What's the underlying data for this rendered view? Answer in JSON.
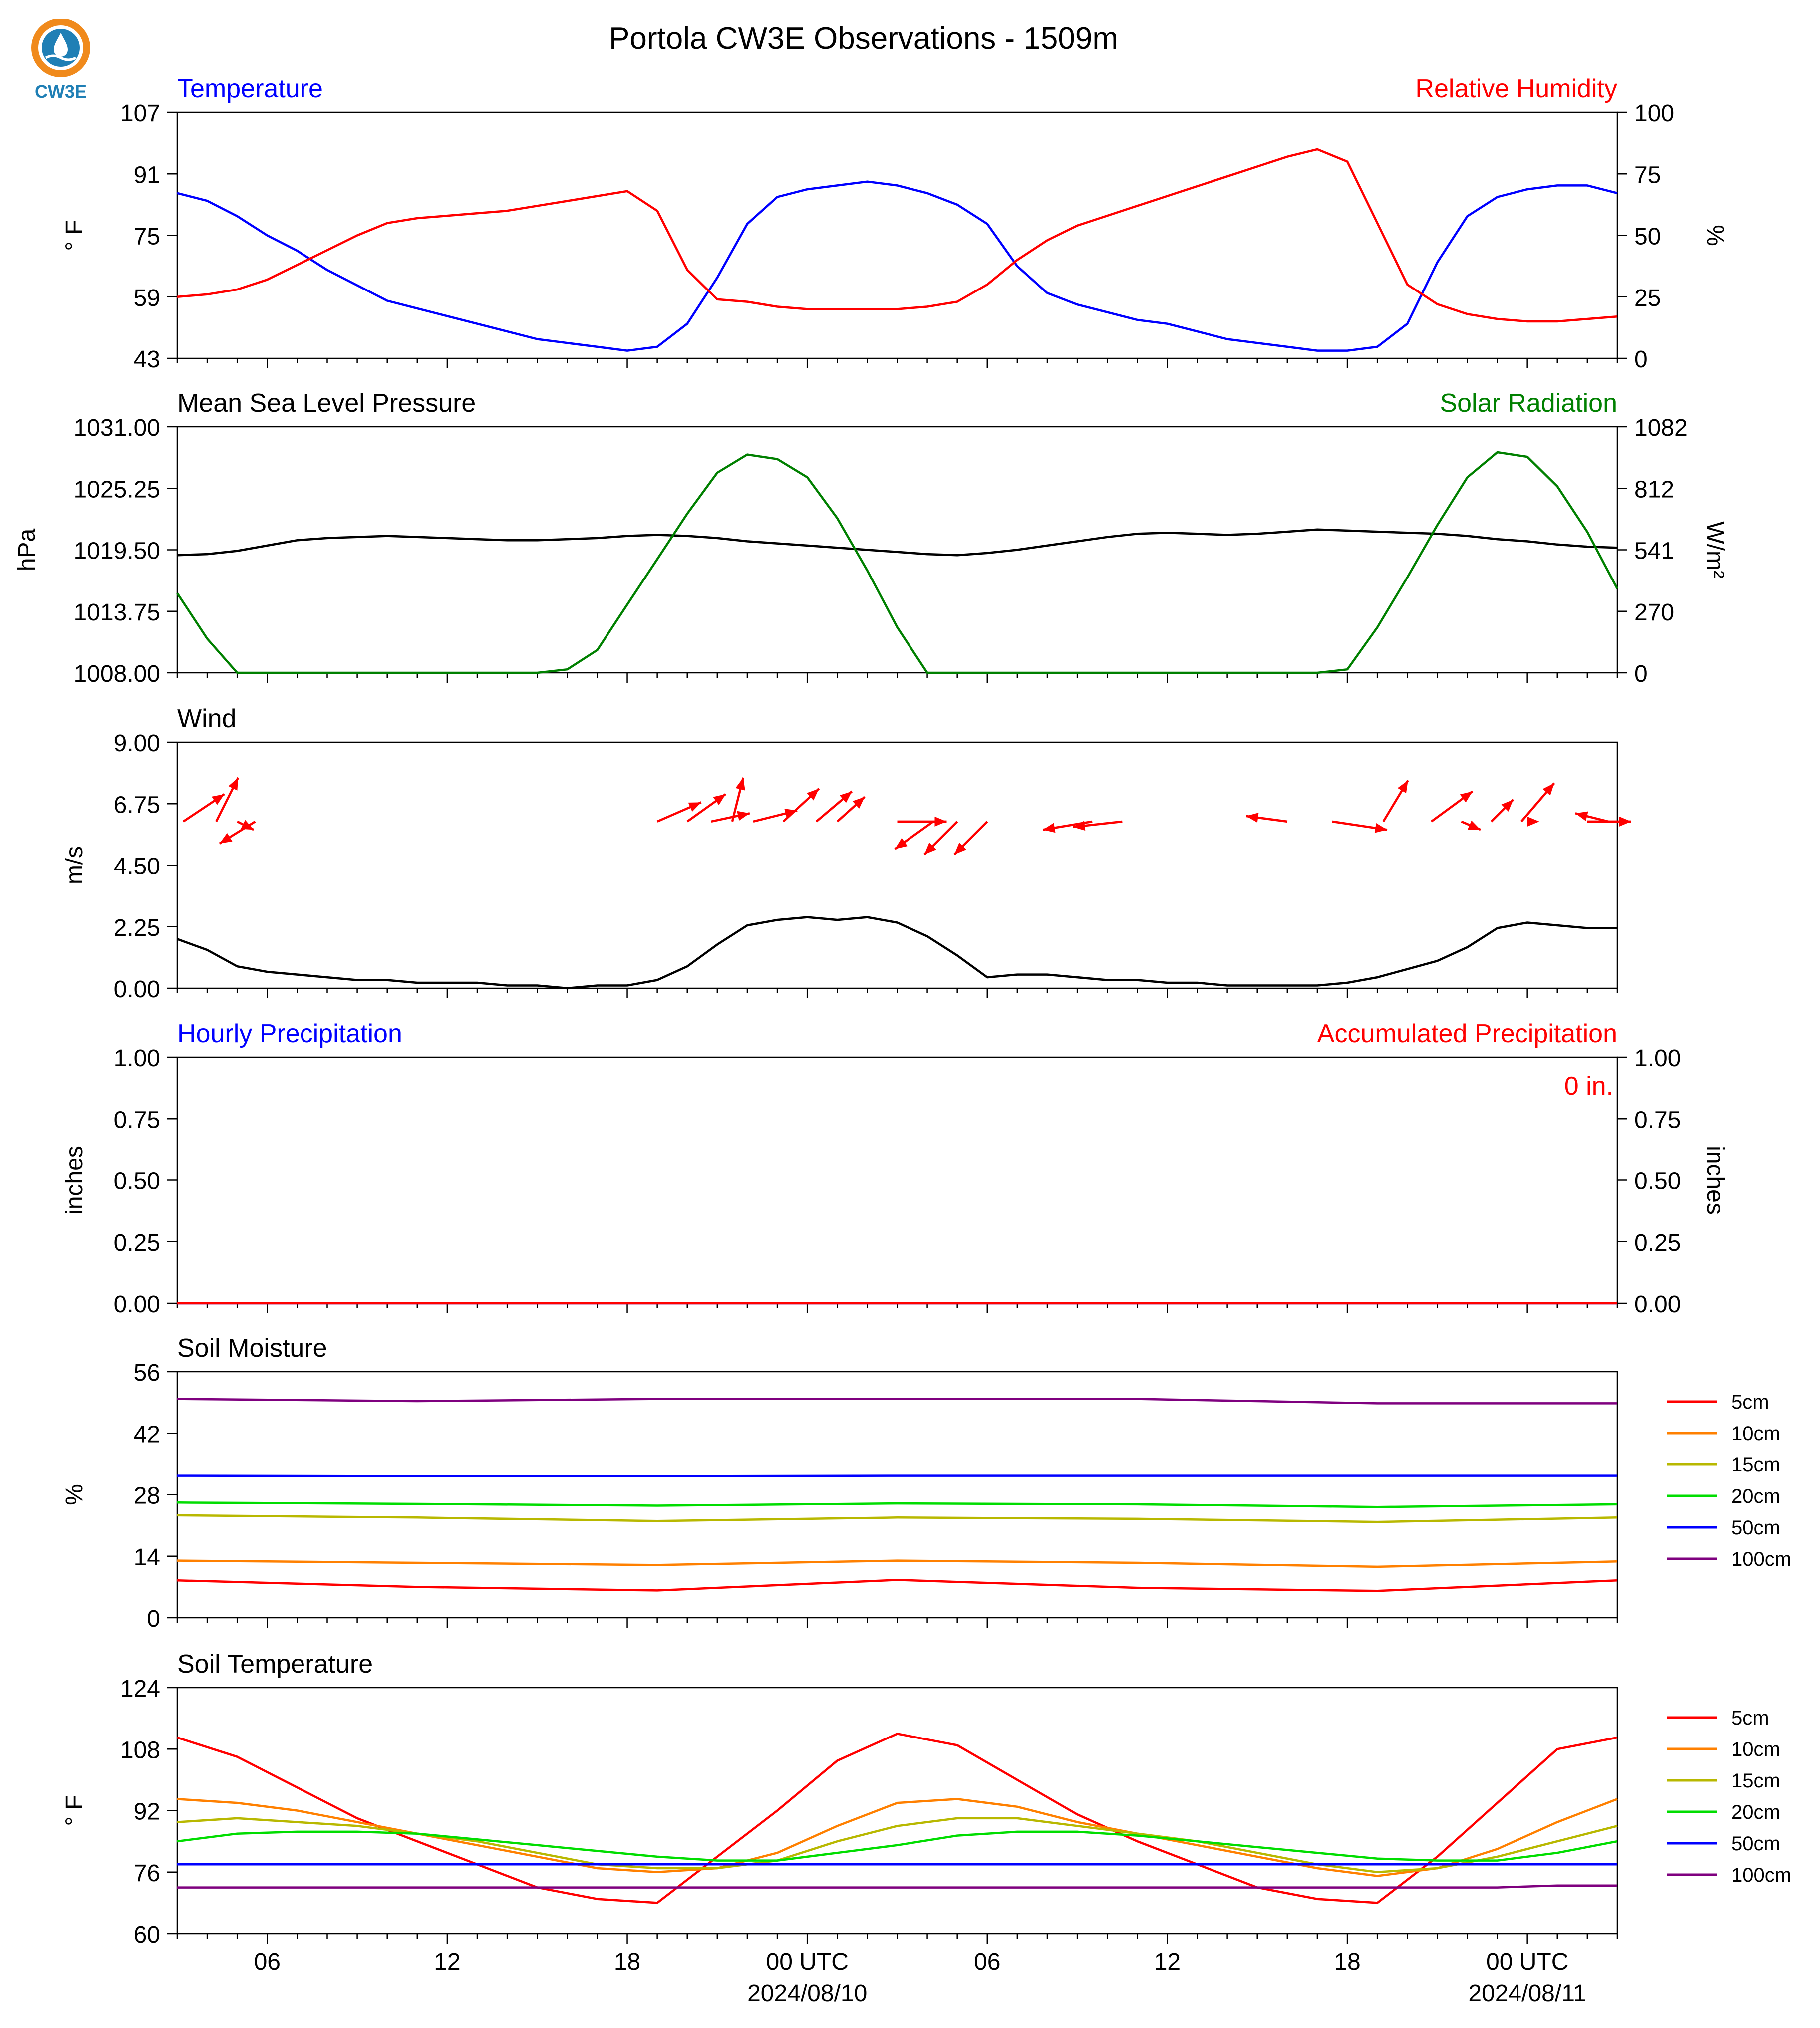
{
  "page": {
    "title": "Portola CW3E Observations - 1509m",
    "logo_text": "CW3E"
  },
  "colors": {
    "blue": "#0000ff",
    "red": "#ff0000",
    "green": "#008000",
    "black": "#000000",
    "orange": "#ff8000",
    "olive": "#b8b800",
    "lime": "#00dd00",
    "purple": "#7f007f"
  },
  "x_axis": {
    "tick_labels": [
      "06",
      "12",
      "18",
      "00 UTC",
      "06",
      "12",
      "18",
      "00 UTC"
    ],
    "date_labels": [
      "2024/08/10",
      "2024/08/11"
    ]
  },
  "legend": {
    "labels": [
      "5cm",
      "10cm",
      "15cm",
      "20cm",
      "50cm",
      "100cm"
    ]
  },
  "chart_data": [
    {
      "type": "line",
      "title_left": "Temperature",
      "title_right": "Relative Humidity",
      "ylabel_left": "° F",
      "ylabel_right": "%",
      "ylim_left": [
        43,
        107
      ],
      "ylim_right": [
        0,
        100
      ],
      "yticks_left": [
        "43",
        "59",
        "75",
        "91",
        "107"
      ],
      "yticks_right": [
        "0",
        "25",
        "50",
        "75",
        "100"
      ],
      "x_hours_from_start": [
        0,
        1,
        2,
        3,
        4,
        5,
        6,
        7,
        8,
        9,
        10,
        11,
        12,
        13,
        14,
        15,
        16,
        17,
        18,
        19,
        20,
        21,
        22,
        23,
        24,
        25,
        26,
        27,
        28,
        29,
        30,
        31,
        32,
        33,
        34,
        35,
        36,
        37,
        38,
        39,
        40,
        41,
        42,
        43,
        44,
        45,
        46,
        47,
        48
      ],
      "series": [
        {
          "axis": "left",
          "color": "blue",
          "values": [
            86,
            84,
            80,
            75,
            71,
            66,
            62,
            58,
            56,
            54,
            52,
            50,
            48,
            47,
            46,
            45,
            46,
            52,
            64,
            78,
            85,
            87,
            88,
            89,
            88,
            86,
            83,
            78,
            67,
            60,
            57,
            55,
            53,
            52,
            50,
            48,
            47,
            46,
            45,
            45,
            46,
            52,
            68,
            80,
            85,
            87,
            88,
            88,
            86
          ]
        },
        {
          "axis": "right",
          "color": "red",
          "values": [
            25,
            26,
            28,
            32,
            38,
            44,
            50,
            55,
            57,
            58,
            59,
            60,
            62,
            64,
            66,
            68,
            60,
            36,
            24,
            23,
            21,
            20,
            20,
            20,
            20,
            21,
            23,
            30,
            40,
            48,
            54,
            58,
            62,
            66,
            70,
            74,
            78,
            82,
            85,
            80,
            55,
            30,
            22,
            18,
            16,
            15,
            15,
            16,
            17
          ]
        }
      ]
    },
    {
      "type": "line",
      "title_left": "Mean Sea Level Pressure",
      "title_right": "Solar Radiation",
      "ylabel_left": "hPa",
      "ylabel_right": "W/m²",
      "ylim_left": [
        1008.0,
        1031.0
      ],
      "ylim_right": [
        0,
        1082
      ],
      "yticks_left": [
        "1008.00",
        "1013.75",
        "1019.50",
        "1025.25",
        "1031.00"
      ],
      "yticks_right": [
        "0",
        "270",
        "541",
        "812",
        "1082"
      ],
      "x_hours_from_start": [
        0,
        1,
        2,
        3,
        4,
        5,
        6,
        7,
        8,
        9,
        10,
        11,
        12,
        13,
        14,
        15,
        16,
        17,
        18,
        19,
        20,
        21,
        22,
        23,
        24,
        25,
        26,
        27,
        28,
        29,
        30,
        31,
        32,
        33,
        34,
        35,
        36,
        37,
        38,
        39,
        40,
        41,
        42,
        43,
        44,
        45,
        46,
        47,
        48
      ],
      "series": [
        {
          "axis": "left",
          "color": "black",
          "values": [
            1019.0,
            1019.1,
            1019.4,
            1019.9,
            1020.4,
            1020.6,
            1020.7,
            1020.8,
            1020.7,
            1020.6,
            1020.5,
            1020.4,
            1020.4,
            1020.5,
            1020.6,
            1020.8,
            1020.9,
            1020.8,
            1020.6,
            1020.3,
            1020.1,
            1019.9,
            1019.7,
            1019.5,
            1019.3,
            1019.1,
            1019.0,
            1019.2,
            1019.5,
            1019.9,
            1020.3,
            1020.7,
            1021.0,
            1021.1,
            1021.0,
            1020.9,
            1021.0,
            1021.2,
            1021.4,
            1021.3,
            1021.2,
            1021.1,
            1021.0,
            1020.8,
            1020.5,
            1020.3,
            1020.0,
            1019.8,
            1019.7
          ]
        },
        {
          "axis": "right",
          "color": "green",
          "values": [
            350,
            150,
            0,
            0,
            0,
            0,
            0,
            0,
            0,
            0,
            0,
            0,
            0,
            15,
            100,
            300,
            500,
            700,
            880,
            960,
            940,
            860,
            680,
            450,
            200,
            0,
            0,
            0,
            0,
            0,
            0,
            0,
            0,
            0,
            0,
            0,
            0,
            0,
            0,
            15,
            200,
            420,
            650,
            860,
            970,
            950,
            820,
            620,
            370
          ]
        }
      ]
    },
    {
      "type": "line",
      "title_left": "Wind",
      "ylabel_left": "m/s",
      "ylim_left": [
        0,
        9
      ],
      "yticks_left": [
        "0.00",
        "2.25",
        "4.50",
        "6.75",
        "9.00"
      ],
      "x_hours_from_start": [
        0,
        1,
        2,
        3,
        4,
        5,
        6,
        7,
        8,
        9,
        10,
        11,
        12,
        13,
        14,
        15,
        16,
        17,
        18,
        19,
        20,
        21,
        22,
        23,
        24,
        25,
        26,
        27,
        28,
        29,
        30,
        31,
        32,
        33,
        34,
        35,
        36,
        37,
        38,
        39,
        40,
        41,
        42,
        43,
        44,
        45,
        46,
        47,
        48
      ],
      "series": [
        {
          "axis": "left",
          "color": "black",
          "values": [
            1.8,
            1.4,
            0.8,
            0.6,
            0.5,
            0.4,
            0.3,
            0.3,
            0.2,
            0.2,
            0.2,
            0.1,
            0.1,
            0.0,
            0.1,
            0.1,
            0.3,
            0.8,
            1.6,
            2.3,
            2.5,
            2.6,
            2.5,
            2.6,
            2.4,
            1.9,
            1.2,
            0.4,
            0.5,
            0.5,
            0.4,
            0.3,
            0.3,
            0.2,
            0.2,
            0.1,
            0.1,
            0.1,
            0.1,
            0.2,
            0.4,
            0.7,
            1.0,
            1.5,
            2.2,
            2.4,
            2.3,
            2.2,
            2.2
          ]
        }
      ],
      "arrows": {
        "color": "red",
        "x_hours_from_start": [
          0.2,
          1.3,
          2.0,
          2.6,
          16.0,
          17.0,
          17.8,
          18.5,
          19.2,
          20.2,
          21.3,
          22.0,
          24.0,
          25.2,
          26.0,
          27.0,
          30.5,
          31.5,
          37.0,
          38.5,
          40.2,
          41.8,
          42.8,
          43.8,
          44.8,
          45.4,
          47.0,
          47.7
        ],
        "u": [
          1.5,
          0.8,
          0.6,
          -1.3,
          1.6,
          1.4,
          1.4,
          0.4,
          1.6,
          1.3,
          1.3,
          1.0,
          1.8,
          -1.4,
          -1.2,
          -1.2,
          -1.8,
          -1.8,
          -1.5,
          2.0,
          0.9,
          1.5,
          0.7,
          0.8,
          1.2,
          0.0,
          1.6,
          -1.2
        ],
        "v": [
          1.0,
          1.6,
          -0.3,
          -0.8,
          0.7,
          1.0,
          0.3,
          1.6,
          0.4,
          1.2,
          1.1,
          0.9,
          0.0,
          -1.0,
          -1.2,
          -1.2,
          -0.3,
          -0.2,
          0.2,
          -0.3,
          1.5,
          1.1,
          -0.3,
          0.8,
          1.4,
          0.0,
          0.0,
          0.3
        ]
      }
    },
    {
      "type": "line",
      "title_left": "Hourly Precipitation",
      "title_right": "Accumulated Precipitation",
      "annotation": "0 in.",
      "ylabel_left": "inches",
      "ylabel_right": "inches",
      "ylim_left": [
        0,
        1
      ],
      "ylim_right": [
        0,
        1
      ],
      "yticks_left": [
        "0.00",
        "0.25",
        "0.50",
        "0.75",
        "1.00"
      ],
      "yticks_right": [
        "0.00",
        "0.25",
        "0.50",
        "0.75",
        "1.00"
      ],
      "x_hours_from_start": [
        0,
        48
      ],
      "series": [
        {
          "axis": "left",
          "color": "blue",
          "values": [
            0,
            0
          ]
        },
        {
          "axis": "right",
          "color": "red",
          "values": [
            0,
            0
          ]
        }
      ]
    },
    {
      "type": "line",
      "title_left": "Soil Moisture",
      "ylabel_left": "%",
      "ylim_left": [
        0,
        56
      ],
      "yticks_left": [
        "0",
        "14",
        "28",
        "42",
        "56"
      ],
      "x_hours_from_start": [
        0,
        8,
        16,
        24,
        32,
        40,
        48
      ],
      "series": [
        {
          "name": "5cm",
          "axis": "left",
          "color": "red",
          "values": [
            8.5,
            7.0,
            6.2,
            8.6,
            6.8,
            6.1,
            8.5
          ]
        },
        {
          "name": "10cm",
          "axis": "left",
          "color": "orange",
          "values": [
            13.0,
            12.5,
            12.0,
            13.0,
            12.5,
            11.6,
            12.8
          ]
        },
        {
          "name": "15cm",
          "axis": "left",
          "color": "olive",
          "values": [
            23.3,
            22.8,
            22.0,
            22.8,
            22.5,
            21.8,
            22.8
          ]
        },
        {
          "name": "20cm",
          "axis": "left",
          "color": "lime",
          "values": [
            26.2,
            25.9,
            25.5,
            26.0,
            25.8,
            25.2,
            25.8
          ]
        },
        {
          "name": "50cm",
          "axis": "left",
          "color": "blue",
          "values": [
            32.3,
            32.2,
            32.2,
            32.3,
            32.3,
            32.3,
            32.3
          ]
        },
        {
          "name": "100cm",
          "axis": "left",
          "color": "purple",
          "values": [
            49.8,
            49.3,
            49.8,
            49.8,
            49.8,
            48.8,
            48.8
          ]
        }
      ]
    },
    {
      "type": "line",
      "title_left": "Soil Temperature",
      "ylabel_left": "° F",
      "ylim_left": [
        60,
        124
      ],
      "yticks_left": [
        "60",
        "76",
        "92",
        "108",
        "124"
      ],
      "x_hours_from_start": [
        0,
        2,
        4,
        6,
        8,
        10,
        12,
        14,
        16,
        18,
        20,
        22,
        24,
        26,
        28,
        30,
        32,
        34,
        36,
        38,
        40,
        42,
        44,
        46,
        48
      ],
      "series": [
        {
          "name": "5cm",
          "axis": "left",
          "color": "red",
          "values": [
            111,
            106,
            98,
            90,
            84,
            78,
            72,
            69,
            68,
            80,
            92,
            105,
            112,
            109,
            100,
            91,
            84,
            78,
            72,
            69,
            68,
            80,
            94,
            108,
            111
          ]
        },
        {
          "name": "10cm",
          "axis": "left",
          "color": "orange",
          "values": [
            95,
            94,
            92,
            89,
            86,
            83,
            80,
            77,
            76,
            77,
            81,
            88,
            94,
            95,
            93,
            89,
            86,
            83,
            80,
            77,
            75,
            77,
            82,
            89,
            95
          ]
        },
        {
          "name": "15cm",
          "axis": "left",
          "color": "olive",
          "values": [
            89,
            90,
            89,
            88,
            86,
            84,
            81,
            78,
            77,
            77,
            79,
            84,
            88,
            90,
            90,
            88,
            86,
            84,
            81,
            78,
            76,
            77,
            80,
            84,
            88
          ]
        },
        {
          "name": "20cm",
          "axis": "left",
          "color": "lime",
          "values": [
            84,
            86,
            86.5,
            86.5,
            86,
            84.5,
            83,
            81.5,
            80,
            79,
            79,
            81,
            83,
            85.5,
            86.5,
            86.5,
            85.5,
            84,
            82.5,
            81,
            79.5,
            79,
            79,
            81,
            84
          ]
        },
        {
          "name": "50cm",
          "axis": "left",
          "color": "blue",
          "values": [
            78,
            78,
            78,
            78,
            78,
            78,
            78,
            78,
            78,
            78,
            78,
            78,
            78,
            78,
            78,
            78,
            78,
            78,
            78,
            78,
            78,
            78,
            78,
            78,
            78
          ]
        },
        {
          "name": "100cm",
          "axis": "left",
          "color": "purple",
          "values": [
            72,
            72,
            72,
            72,
            72,
            72,
            72,
            72,
            72,
            72,
            72,
            72,
            72,
            72,
            72,
            72,
            72,
            72,
            72,
            72,
            72,
            72,
            72,
            72.5,
            72.5
          ]
        }
      ]
    }
  ]
}
